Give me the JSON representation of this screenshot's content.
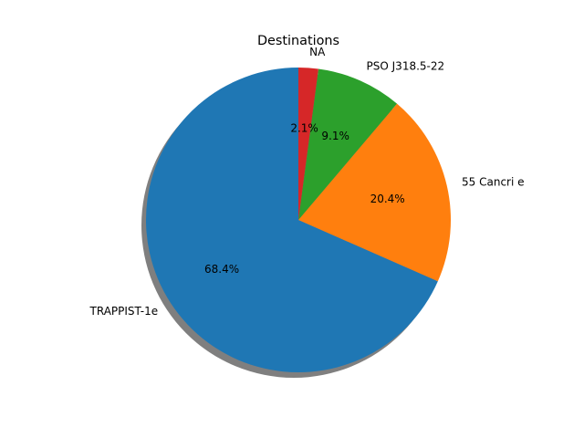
{
  "chart_data": {
    "type": "pie",
    "title": "Destinations",
    "labels": [
      "TRAPPIST-1e",
      "55 Cancri e",
      "PSO J318.5-22",
      "NA"
    ],
    "values": [
      68.4,
      20.4,
      9.1,
      2.1
    ],
    "percent_labels": [
      "68.4%",
      "20.4%",
      "9.1%",
      "2.1%"
    ],
    "colors": [
      "#1f77b4",
      "#ff7f0e",
      "#2ca02c",
      "#d62728"
    ],
    "start_angle_deg": 90,
    "shadow": true,
    "legend": "none"
  }
}
